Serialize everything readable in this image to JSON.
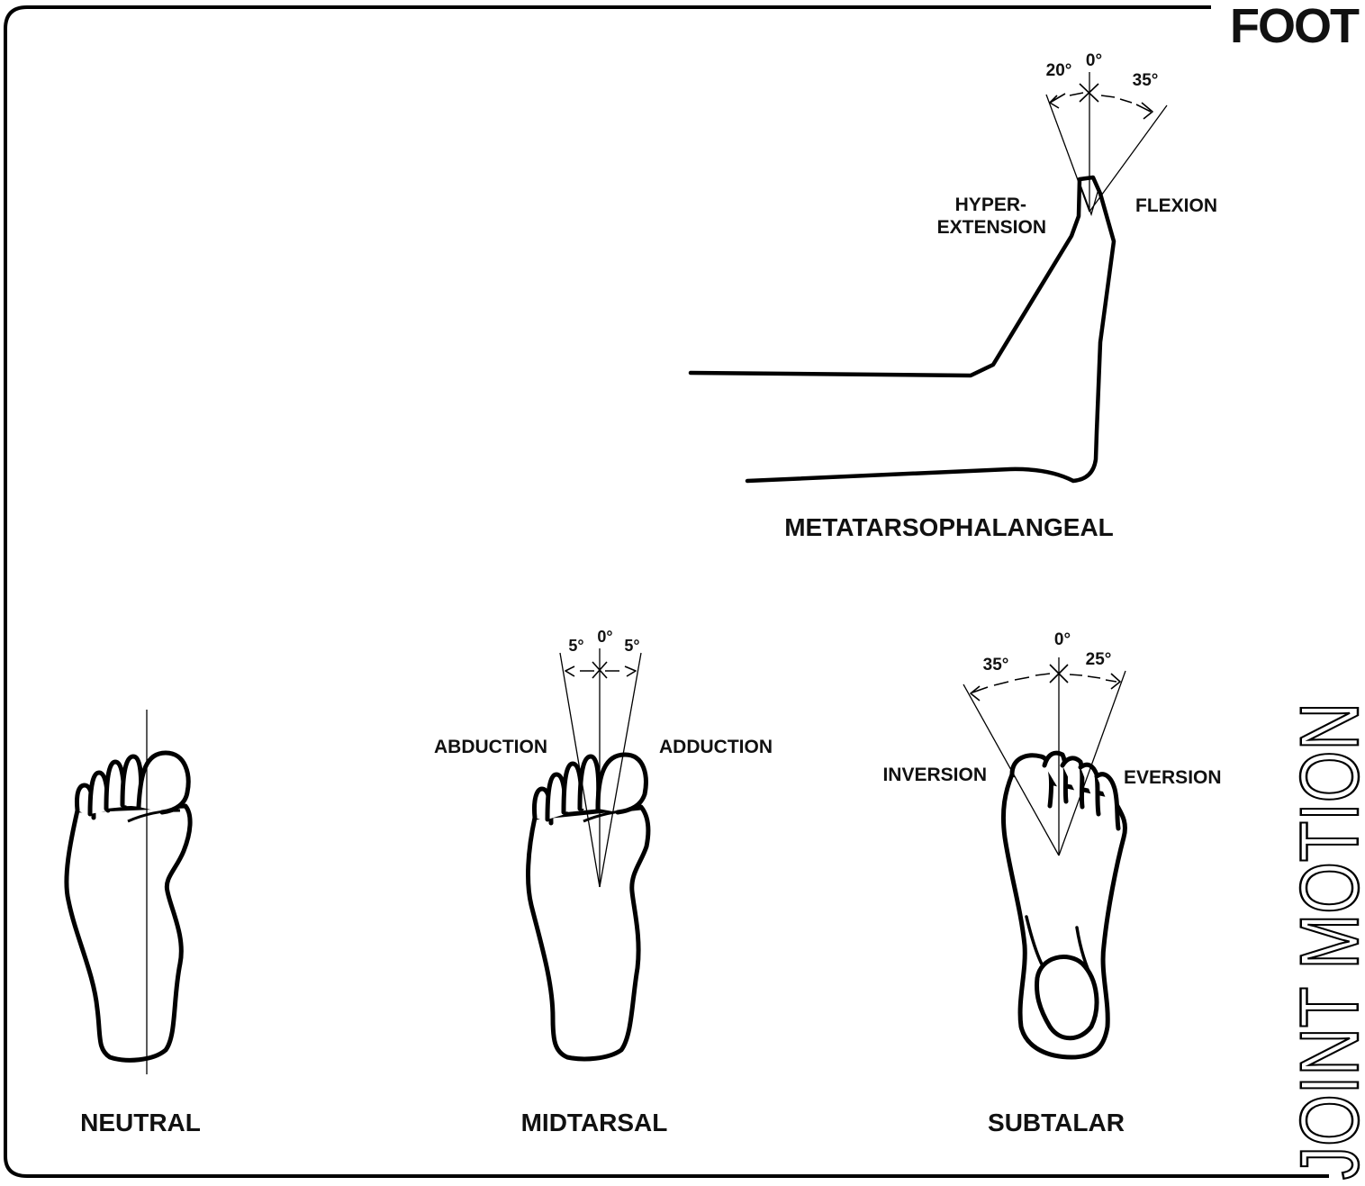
{
  "header": {
    "title": "FOOT",
    "side_title": "JOINT MOTION"
  },
  "mtp": {
    "caption": "METATARSOPHALANGEAL",
    "left_label_1": "HYPER-",
    "left_label_2": "EXTENSION",
    "right_label": "FLEXION",
    "angle_left": "20°",
    "angle_zero": "0°",
    "angle_right": "35°"
  },
  "neutral": {
    "caption": "NEUTRAL"
  },
  "midtarsal": {
    "caption": "MIDTARSAL",
    "left_label": "ABDUCTION",
    "right_label": "ADDUCTION",
    "angle_left": "5°",
    "angle_zero": "0°",
    "angle_right": "5°"
  },
  "subtalar": {
    "caption": "SUBTALAR",
    "left_label": "INVERSION",
    "right_label": "EVERSION",
    "angle_left": "35°",
    "angle_zero": "0°",
    "angle_right": "25°"
  },
  "colors": {
    "ink": "#000000",
    "background": "#ffffff"
  }
}
